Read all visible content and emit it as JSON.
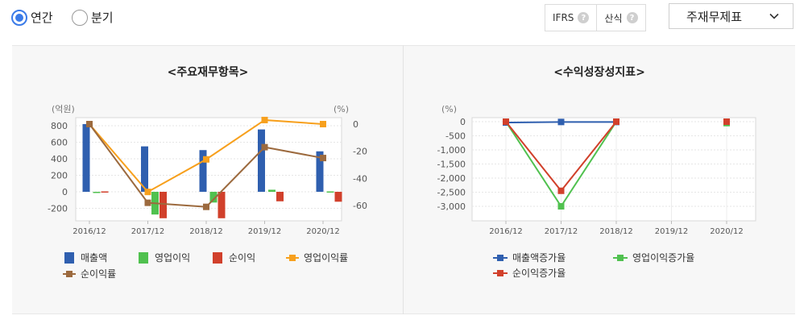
{
  "period": {
    "annual_label": "연간",
    "quarterly_label": "분기",
    "selected": "annual"
  },
  "options": {
    "ifrs_label": "IFRS",
    "consolidated_label": "산식",
    "help_glyph": "?"
  },
  "dropdown": {
    "selected": "주재무제표"
  },
  "colors": {
    "accent": "#3b7be8",
    "revenue": "#2f5faf",
    "operating_income": "#50c14f",
    "net_income": "#d1402b",
    "operating_margin": "#f7a01d",
    "net_margin": "#9c6a3e"
  },
  "chart1": {
    "title": "<주요재무항목>",
    "left_unit": "(억원)",
    "right_unit": "(%)",
    "left_ticks": [
      "800",
      "600",
      "400",
      "200",
      "0",
      "-200"
    ],
    "right_ticks": [
      "0",
      "-20",
      "-40",
      "-60"
    ],
    "categories": [
      "2016/12",
      "2017/12",
      "2018/12",
      "2019/12",
      "2020/12"
    ],
    "legend": [
      "매출액",
      "영업이익",
      "순이익",
      "영업이익률",
      "순이익률"
    ]
  },
  "chart2": {
    "title": "<수익성장성지표>",
    "unit": "(%)",
    "y_ticks": [
      "0",
      "-500",
      "-1,000",
      "-1,500",
      "-2,000",
      "-2,500",
      "-3,000"
    ],
    "categories": [
      "2016/12",
      "2017/12",
      "2018/12",
      "2019/12",
      "2020/12"
    ],
    "legend": [
      "매출액증가율",
      "영업이익증가율",
      "순이익증가율"
    ]
  },
  "chart_data": [
    {
      "type": "bar",
      "title": "<주요재무항목>",
      "categories": [
        "2016/12",
        "2017/12",
        "2018/12",
        "2019/12",
        "2020/12"
      ],
      "ylim": [
        -300,
        850
      ],
      "y2lim": [
        -70,
        5
      ],
      "series": [
        {
          "name": "매출액",
          "axis": "left",
          "type": "bar",
          "values": [
            820,
            550,
            505,
            755,
            490
          ]
        },
        {
          "name": "영업이익",
          "axis": "left",
          "type": "bar",
          "values": [
            0,
            -275,
            -130,
            25,
            5
          ]
        },
        {
          "name": "순이익",
          "axis": "left",
          "type": "bar",
          "values": [
            5,
            -320,
            -320,
            -115,
            -120
          ]
        },
        {
          "name": "영업이익률",
          "axis": "right",
          "type": "line",
          "values": [
            0,
            -50,
            -26,
            3,
            0
          ]
        },
        {
          "name": "순이익률",
          "axis": "right",
          "type": "line",
          "values": [
            0,
            -58,
            -61,
            -17,
            -25
          ]
        }
      ]
    },
    {
      "type": "line",
      "title": "<수익성장성지표>",
      "categories": [
        "2016/12",
        "2017/12",
        "2018/12",
        "2019/12",
        "2020/12"
      ],
      "ylim": [
        -3300,
        100
      ],
      "series": [
        {
          "name": "매출액증가율",
          "values": [
            -30,
            -10,
            -10,
            null,
            null
          ]
        },
        {
          "name": "영업이익증가율",
          "values": [
            0,
            -3000,
            0,
            null,
            -50
          ]
        },
        {
          "name": "순이익증가율",
          "values": [
            0,
            -2450,
            0,
            null,
            0
          ]
        }
      ]
    }
  ]
}
